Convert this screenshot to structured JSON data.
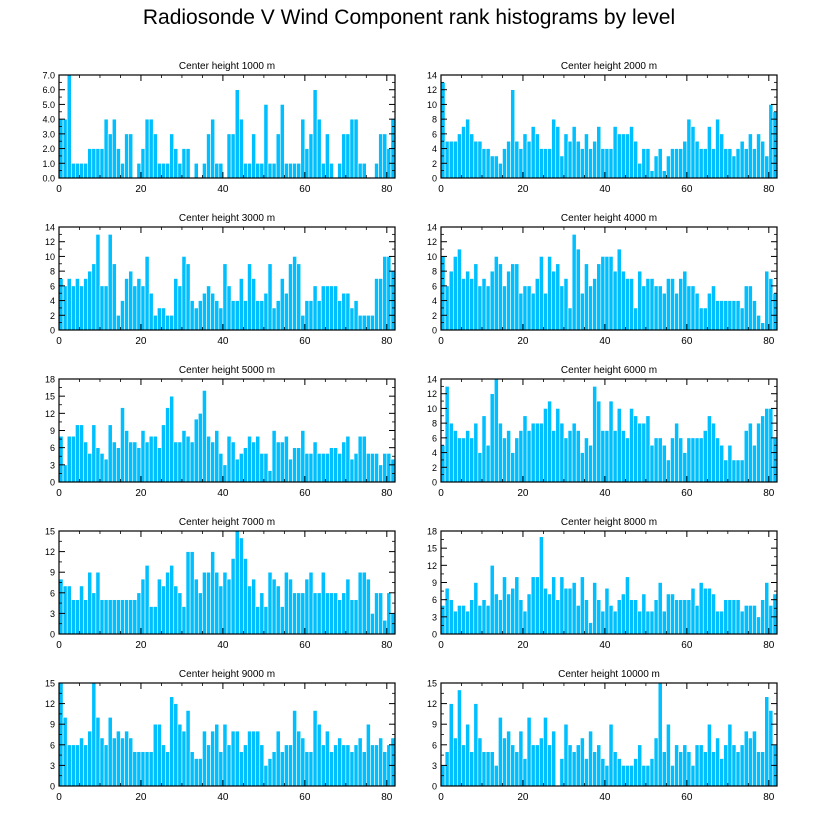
{
  "title": "Radiosonde V Wind Component rank histograms by level",
  "colors": {
    "bar": "#00bfff",
    "bar_edge": "#ffffff",
    "axis": "#000000"
  },
  "chart_data": [
    {
      "type": "bar",
      "title": "Center height 1000 m",
      "xlabel": "",
      "ylabel": "",
      "xlim": [
        0,
        82
      ],
      "ylim": [
        0,
        7
      ],
      "xticks": [
        0,
        20,
        40,
        60,
        80
      ],
      "yticks": [
        0,
        1,
        2,
        3,
        4,
        5,
        6,
        7
      ],
      "ytick_labels": [
        "0.0",
        "1.0",
        "2.0",
        "3.0",
        "4.0",
        "5.0",
        "6.0",
        "7.0"
      ],
      "values": [
        4,
        4,
        7,
        1,
        1,
        1,
        1,
        2,
        2,
        2,
        2,
        4,
        3,
        4,
        2,
        1,
        3,
        3,
        0,
        1,
        2,
        4,
        4,
        3,
        1,
        1,
        1,
        3,
        2,
        1,
        2,
        2,
        0,
        1,
        0,
        1,
        3,
        4,
        1,
        1,
        0,
        3,
        3,
        6,
        4,
        1,
        1,
        3,
        1,
        1,
        5,
        1,
        1,
        3,
        5,
        1,
        1,
        1,
        1,
        4,
        2,
        3,
        6,
        4,
        1,
        3,
        1,
        0,
        1,
        3,
        3,
        4,
        4,
        1,
        1,
        0,
        0,
        1,
        3,
        3,
        2,
        4
      ]
    },
    {
      "type": "bar",
      "title": "Center height 2000 m",
      "xlabel": "",
      "ylabel": "",
      "xlim": [
        0,
        82
      ],
      "ylim": [
        0,
        14
      ],
      "xticks": [
        0,
        20,
        40,
        60,
        80
      ],
      "yticks": [
        0,
        2,
        4,
        6,
        8,
        10,
        12,
        14
      ],
      "ytick_labels": [
        "0",
        "2",
        "4",
        "6",
        "8",
        "10",
        "12",
        "14"
      ],
      "values": [
        13,
        5,
        5,
        5,
        6,
        7,
        8,
        6,
        5,
        5,
        4,
        4,
        3,
        3,
        2,
        4,
        5,
        12,
        5,
        4,
        6,
        5,
        7,
        6,
        4,
        4,
        4,
        8,
        7,
        3,
        6,
        5,
        7,
        5,
        4,
        6,
        4,
        5,
        7,
        4,
        4,
        4,
        7,
        6,
        6,
        6,
        7,
        5,
        2,
        4,
        4,
        1,
        3,
        4,
        1,
        3,
        4,
        4,
        4,
        5,
        8,
        7,
        5,
        4,
        4,
        7,
        4,
        8,
        6,
        4,
        4,
        3,
        4,
        5,
        4,
        6,
        4,
        6,
        5,
        3,
        10,
        9
      ]
    },
    {
      "type": "bar",
      "title": "Center height 3000 m",
      "xlabel": "",
      "ylabel": "",
      "xlim": [
        0,
        82
      ],
      "ylim": [
        0,
        14
      ],
      "xticks": [
        0,
        20,
        40,
        60,
        80
      ],
      "yticks": [
        0,
        2,
        4,
        6,
        8,
        10,
        12,
        14
      ],
      "ytick_labels": [
        "0",
        "2",
        "4",
        "6",
        "8",
        "10",
        "12",
        "14"
      ],
      "values": [
        7,
        6,
        7,
        6,
        7,
        6,
        7,
        8,
        9,
        13,
        6,
        6,
        13,
        9,
        2,
        4,
        7,
        8,
        6,
        7,
        6,
        10,
        5,
        2,
        3,
        3,
        2,
        2,
        7,
        6,
        10,
        9,
        4,
        3,
        4,
        5,
        6,
        5,
        4,
        3,
        9,
        6,
        4,
        4,
        7,
        4,
        9,
        7,
        4,
        4,
        5,
        9,
        3,
        4,
        7,
        5,
        9,
        10,
        9,
        2,
        4,
        4,
        6,
        4,
        6,
        6,
        6,
        6,
        4,
        5,
        5,
        3,
        4,
        2,
        2,
        2,
        2,
        7,
        7,
        10,
        10,
        8
      ]
    },
    {
      "type": "bar",
      "title": "Center height 4000 m",
      "xlabel": "",
      "ylabel": "",
      "xlim": [
        0,
        82
      ],
      "ylim": [
        0,
        14
      ],
      "xticks": [
        0,
        20,
        40,
        60,
        80
      ],
      "yticks": [
        0,
        2,
        4,
        6,
        8,
        10,
        12,
        14
      ],
      "ytick_labels": [
        "0",
        "2",
        "4",
        "6",
        "8",
        "10",
        "12",
        "14"
      ],
      "values": [
        10,
        6,
        8,
        10,
        11,
        7,
        8,
        7,
        9,
        6,
        7,
        6,
        8,
        10,
        9,
        6,
        8,
        9,
        9,
        5,
        6,
        6,
        5,
        7,
        10,
        5,
        10,
        8,
        9,
        6,
        7,
        3,
        13,
        11,
        5,
        9,
        6,
        7,
        9,
        10,
        10,
        10,
        8,
        11,
        8,
        7,
        7,
        3,
        8,
        6,
        7,
        7,
        6,
        6,
        5,
        7,
        7,
        5,
        7,
        8,
        6,
        6,
        5,
        3,
        3,
        5,
        6,
        4,
        4,
        4,
        4,
        4,
        4,
        3,
        6,
        6,
        4,
        2,
        1,
        8,
        7,
        5
      ]
    },
    {
      "type": "bar",
      "title": "Center height 5000 m",
      "xlabel": "",
      "ylabel": "",
      "xlim": [
        0,
        82
      ],
      "ylim": [
        0,
        18
      ],
      "xticks": [
        0,
        20,
        40,
        60,
        80
      ],
      "yticks": [
        0,
        3,
        6,
        9,
        12,
        15,
        18
      ],
      "ytick_labels": [
        "0",
        "3",
        "6",
        "9",
        "12",
        "15",
        "18"
      ],
      "values": [
        8,
        3,
        8,
        8,
        10,
        10,
        7,
        5,
        10,
        6,
        5,
        4,
        10,
        7,
        6,
        13,
        9,
        7,
        7,
        6,
        9,
        7,
        8,
        8,
        6,
        10,
        13,
        15,
        7,
        7,
        9,
        8,
        7,
        11,
        12,
        16,
        8,
        7,
        9,
        5,
        3,
        8,
        7,
        4,
        5,
        6,
        8,
        7,
        8,
        5,
        5,
        2,
        9,
        7,
        7,
        8,
        4,
        6,
        6,
        9,
        5,
        5,
        7,
        5,
        5,
        5,
        6,
        6,
        5,
        7,
        8,
        4,
        5,
        8,
        8,
        5,
        5,
        5,
        3,
        5,
        5,
        4
      ]
    },
    {
      "type": "bar",
      "title": "Center height 6000 m",
      "xlabel": "",
      "ylabel": "",
      "xlim": [
        0,
        82
      ],
      "ylim": [
        0,
        14
      ],
      "xticks": [
        0,
        20,
        40,
        60,
        80
      ],
      "yticks": [
        0,
        2,
        4,
        6,
        8,
        10,
        12,
        14
      ],
      "ytick_labels": [
        "0",
        "2",
        "4",
        "6",
        "8",
        "10",
        "12",
        "14"
      ],
      "values": [
        5,
        13,
        8,
        7,
        6,
        6,
        7,
        6,
        8,
        4,
        9,
        5,
        12,
        14,
        8,
        6,
        7,
        4,
        6,
        7,
        9,
        7,
        8,
        8,
        8,
        10,
        11,
        7,
        10,
        8,
        6,
        7,
        8,
        7,
        4,
        6,
        5,
        13,
        11,
        7,
        7,
        11,
        7,
        10,
        7,
        6,
        10,
        9,
        8,
        8,
        9,
        5,
        6,
        6,
        5,
        3,
        6,
        8,
        6,
        4,
        6,
        6,
        6,
        6,
        7,
        9,
        8,
        6,
        5,
        3,
        5,
        3,
        3,
        3,
        7,
        8,
        5,
        8,
        9,
        10,
        10,
        6
      ]
    },
    {
      "type": "bar",
      "title": "Center height 7000 m",
      "xlabel": "",
      "ylabel": "",
      "xlim": [
        0,
        82
      ],
      "ylim": [
        0,
        15
      ],
      "xticks": [
        0,
        20,
        40,
        60,
        80
      ],
      "yticks": [
        0,
        3,
        6,
        9,
        12,
        15
      ],
      "ytick_labels": [
        "0",
        "3",
        "6",
        "9",
        "12",
        "15"
      ],
      "values": [
        8,
        7,
        7,
        5,
        5,
        7,
        5,
        9,
        6,
        9,
        5,
        5,
        5,
        5,
        5,
        5,
        5,
        5,
        5,
        6,
        8,
        10,
        4,
        4,
        8,
        7,
        9,
        10,
        7,
        6,
        4,
        12,
        12,
        8,
        6,
        9,
        9,
        12,
        9,
        7,
        9,
        8,
        11,
        15,
        14,
        11,
        7,
        8,
        4,
        6,
        4,
        9,
        8,
        7,
        4,
        9,
        8,
        6,
        6,
        6,
        8,
        9,
        6,
        6,
        9,
        6,
        6,
        6,
        5,
        6,
        8,
        5,
        5,
        9,
        9,
        8,
        3,
        6,
        6,
        2,
        6,
        3
      ]
    },
    {
      "type": "bar",
      "title": "Center height 8000 m",
      "xlabel": "",
      "ylabel": "",
      "xlim": [
        0,
        82
      ],
      "ylim": [
        0,
        18
      ],
      "xticks": [
        0,
        20,
        40,
        60,
        80
      ],
      "yticks": [
        0,
        3,
        6,
        9,
        12,
        15,
        18
      ],
      "ytick_labels": [
        "0",
        "3",
        "6",
        "9",
        "12",
        "15",
        "18"
      ],
      "values": [
        5,
        8,
        6,
        4,
        5,
        5,
        4,
        6,
        9,
        5,
        6,
        5,
        12,
        7,
        6,
        10,
        7,
        8,
        10,
        6,
        4,
        7,
        10,
        10,
        17,
        8,
        7,
        10,
        6,
        10,
        8,
        8,
        9,
        5,
        10,
        6,
        2,
        9,
        6,
        4,
        8,
        5,
        4,
        6,
        7,
        10,
        6,
        6,
        4,
        7,
        4,
        4,
        6,
        9,
        4,
        7,
        7,
        6,
        6,
        6,
        6,
        8,
        5,
        9,
        8,
        8,
        7,
        4,
        4,
        6,
        6,
        6,
        6,
        4,
        5,
        5,
        5,
        3,
        6,
        9,
        5,
        7
      ]
    },
    {
      "type": "bar",
      "title": "Center height 9000 m",
      "xlabel": "",
      "ylabel": "",
      "xlim": [
        0,
        82
      ],
      "ylim": [
        0,
        15
      ],
      "xticks": [
        0,
        20,
        40,
        60,
        80
      ],
      "yticks": [
        0,
        3,
        6,
        9,
        12,
        15
      ],
      "ytick_labels": [
        "0",
        "3",
        "6",
        "9",
        "12",
        "15"
      ],
      "values": [
        15,
        10,
        6,
        6,
        6,
        7,
        6,
        8,
        15,
        10,
        7,
        6,
        10,
        7,
        8,
        7,
        8,
        7,
        5,
        5,
        5,
        5,
        5,
        9,
        9,
        6,
        5,
        13,
        12,
        9,
        8,
        11,
        5,
        4,
        4,
        8,
        6,
        8,
        9,
        5,
        9,
        6,
        8,
        8,
        5,
        6,
        8,
        8,
        8,
        6,
        3,
        4,
        5,
        8,
        5,
        6,
        6,
        11,
        8,
        7,
        5,
        5,
        11,
        9,
        6,
        8,
        5,
        6,
        7,
        6,
        6,
        5,
        6,
        7,
        5,
        9,
        6,
        6,
        7,
        5,
        6,
        7
      ]
    },
    {
      "type": "bar",
      "title": "Center height 10000 m",
      "xlabel": "",
      "ylabel": "",
      "xlim": [
        0,
        82
      ],
      "ylim": [
        0,
        15
      ],
      "xticks": [
        0,
        20,
        40,
        60,
        80
      ],
      "yticks": [
        0,
        3,
        6,
        9,
        12,
        15
      ],
      "ytick_labels": [
        "0",
        "3",
        "6",
        "9",
        "12",
        "15"
      ],
      "values": [
        3,
        5,
        12,
        7,
        14,
        6,
        9,
        5,
        12,
        7,
        5,
        5,
        5,
        3,
        10,
        7,
        8,
        6,
        5,
        8,
        4,
        10,
        6,
        6,
        7,
        10,
        6,
        8,
        0,
        4,
        9,
        6,
        5,
        6,
        7,
        4,
        8,
        5,
        6,
        4,
        3,
        9,
        5,
        4,
        3,
        3,
        3,
        4,
        6,
        3,
        3,
        4,
        7,
        15,
        5,
        9,
        3,
        6,
        5,
        6,
        5,
        3,
        6,
        6,
        5,
        9,
        5,
        7,
        4,
        6,
        9,
        6,
        5,
        6,
        8,
        7,
        8,
        5,
        5,
        13,
        11,
        6
      ]
    }
  ]
}
